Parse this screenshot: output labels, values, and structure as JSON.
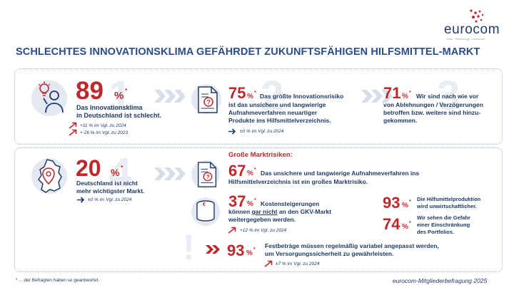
{
  "logo": {
    "name": "eurocom",
    "tagline": "Care. Technology. Innovation."
  },
  "title": "SCHLECHTES INNOVATIONSKLIMA GEFÄHRDET ZUKUNFTSFÄHIGEN HILFSMITTEL-MARKT",
  "top": {
    "s89": {
      "value": "89",
      "unit": "%",
      "mark": "*",
      "text1": "Das Innovationsklima",
      "text2": "in Deutschland ist schlecht.",
      "note1": "+11 % im Vgl. zu 2024",
      "note2": "+ 26 % im Vgl. zu 2023"
    },
    "s75": {
      "value": "75",
      "unit": "%",
      "mark": "*",
      "text1": "Das größte Innovationsrisiko",
      "text2": "ist das unsichere und langwierige",
      "text3": "Aufnahmeverfahren neuartiger",
      "text4": "Produkte ins Hilfsmittelverzeichnis.",
      "note": "±0 % im Vgl. zu 2024"
    },
    "s71": {
      "value": "71",
      "unit": "%",
      "mark": "*",
      "text1": "Wir sind nach wie vor",
      "text2": "von Ablehnungen / Verzögerungen",
      "text3": "betroffen bzw. weitere sind hinzu-",
      "text4": "gekommen."
    }
  },
  "bottom": {
    "s20": {
      "value": "20",
      "unit": "%",
      "mark": "*",
      "text1": "Deutschland ist nicht",
      "text2": "mehr wichtigster Markt.",
      "note": "±0 % im Vgl. zu 2024"
    },
    "risks_heading": "Große Marktrisiken:",
    "s67": {
      "value": "67",
      "unit": "%",
      "mark": "*",
      "text1": "Das unsichere und langwierige Aufnahmeverfahren ins",
      "text2": "Hilfsmittelverzeichnis ist ein großes Marktrisiko."
    },
    "s37": {
      "value": "37",
      "unit": "%",
      "mark": "*",
      "text1": "Kostensteigerungen",
      "text2a": "können ",
      "text2b": "gar nicht",
      "text2c": " an den GKV-Markt",
      "text3": "weitergegeben werden.",
      "note": "+12 % im Vgl. zu 2024"
    },
    "s93a": {
      "value": "93",
      "unit": "%",
      "mark": "*",
      "text1": "Die Hilfsmittelproduktion",
      "text2": "wird unwirtschaftlicher."
    },
    "s74": {
      "value": "74",
      "unit": "%",
      "mark": "*",
      "text1": "Wir sehen die Gefahr",
      "text2": "einer Einschränkung",
      "text3": "des Portfolios."
    },
    "s93b": {
      "value": "93",
      "unit": "%",
      "mark": "*",
      "text1": "Festbeträge müssen regelmäßig variabel angepasst werden,",
      "text2": "um Versorgungssicherheit zu gewährleisten.",
      "note": "±7 % im Vgl. zu 2024"
    }
  },
  "footer": {
    "left": "* ... der Befragten haben so geantwortet.",
    "right": "eurocom-Mitgliederbefragung 2025"
  },
  "colors": {
    "navy": "#1f3a66",
    "red": "#c0272d",
    "light": "#e3e8f1",
    "dots": "#9fb0cc"
  },
  "icons": [
    "lightbulb-person-icon",
    "document-question-icon",
    "germany-map-pin-icon",
    "coins-euro-icon",
    "arrow-up-right-icon",
    "arrow-right-icon",
    "chevron-right-icon",
    "double-arrow-icon"
  ]
}
